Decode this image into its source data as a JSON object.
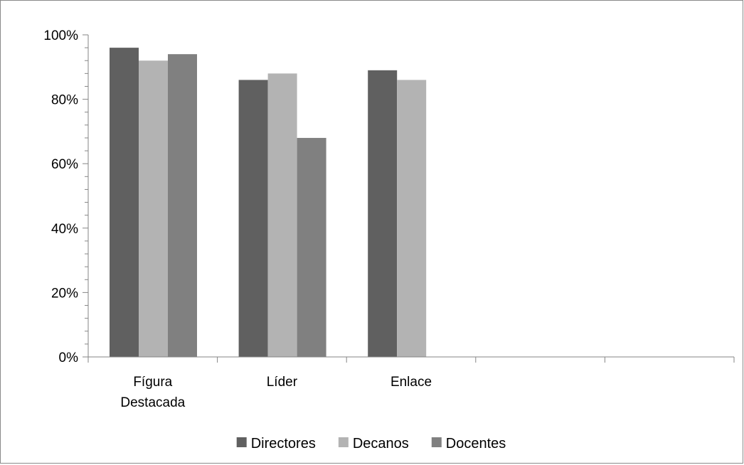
{
  "chart_data": {
    "type": "bar",
    "categories": [
      [
        "Fígura",
        "Destacada"
      ],
      [
        "Líder"
      ],
      [
        "Enlace"
      ],
      [
        ""
      ],
      [
        ""
      ]
    ],
    "series": [
      {
        "name": "Directores",
        "color": "#606060",
        "values": [
          0.96,
          0.86,
          0.89,
          null,
          null
        ]
      },
      {
        "name": "Decanos",
        "color": "#b3b3b3",
        "values": [
          0.92,
          0.88,
          0.86,
          null,
          null
        ]
      },
      {
        "name": "Docentes",
        "color": "#808080",
        "values": [
          0.94,
          0.68,
          null,
          null,
          null
        ]
      }
    ],
    "ylim": [
      0,
      1
    ],
    "yticks": [
      "0%",
      "20%",
      "40%",
      "60%",
      "80%",
      "100%"
    ],
    "ytick_values": [
      0,
      0.2,
      0.4,
      0.6,
      0.8,
      1.0
    ],
    "minor_ticks_per_major": 5,
    "grid": false,
    "legend_position": "bottom",
    "title": "",
    "xlabel": "",
    "ylabel": ""
  }
}
